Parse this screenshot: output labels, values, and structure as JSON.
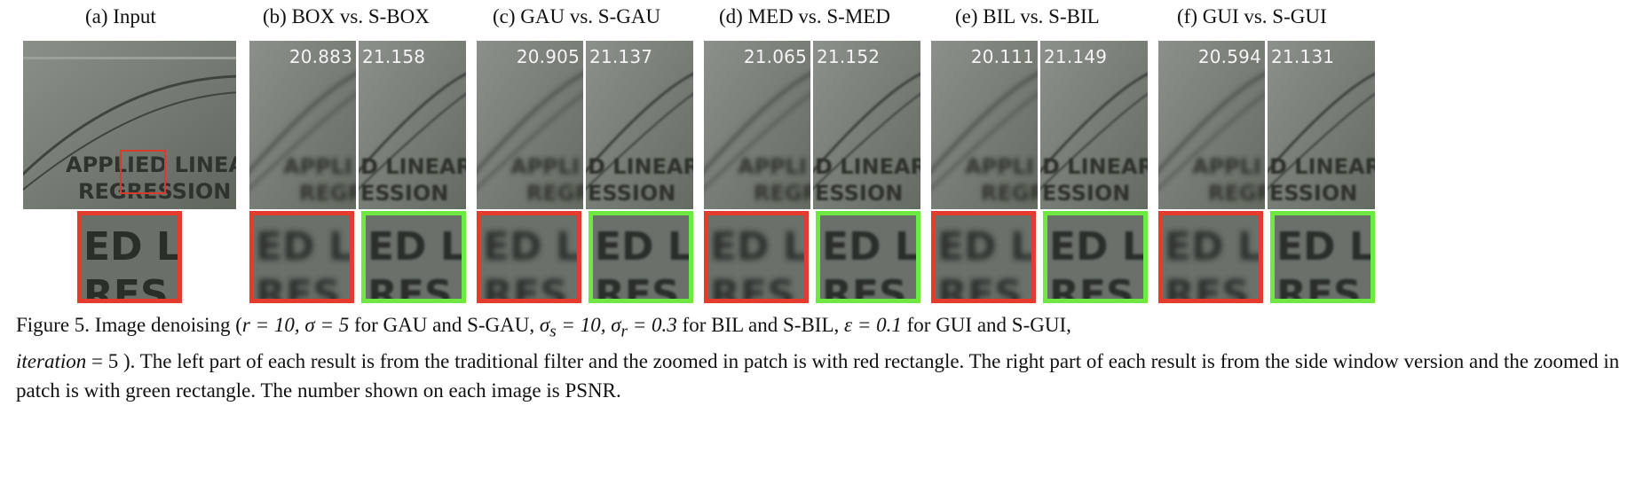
{
  "panels": [
    {
      "title": "(a) Input"
    },
    {
      "title": "(b) BOX vs. S-BOX",
      "left_psnr": "20.883",
      "right_psnr": "21.158"
    },
    {
      "title": "(c) GAU vs. S-GAU",
      "left_psnr": "20.905",
      "right_psnr": "21.137"
    },
    {
      "title": "(d) MED vs. S-MED",
      "left_psnr": "21.065",
      "right_psnr": "21.152"
    },
    {
      "title": "(e) BIL vs. S-BIL",
      "left_psnr": "20.111",
      "right_psnr": "21.149"
    },
    {
      "title": "(f) GUI vs. S-GUI",
      "left_psnr": "20.594",
      "right_psnr": "21.131"
    }
  ],
  "image_text": {
    "line1": "APPLIED LINEAR",
    "line2": "REGRESSION",
    "zoom_text1": "ED L",
    "zoom_text2": "RES"
  },
  "caption": {
    "lead": "Figure 5. Image denoising (",
    "eq1": "r = 10, σ = 5",
    "t1": " for GAU and S-GAU, ",
    "eq2": "σ",
    "eq2sub": "s",
    "eq2b": " = 10, σ",
    "eq2bsub": "r",
    "eq2c": " = 0.3",
    "t2": " for BIL and S-BIL, ",
    "eq3": "ε = 0.1",
    "t3": " for GUI and S-GUI,",
    "eq4": "iteration",
    "eq4b": " = 5 ). The left part of each result is from the traditional filter and the zoomed in patch is with red rectangle. The right part of each result is from the side window version and the zoomed in patch is with green rectangle. The number shown on each image is PSNR."
  },
  "colors": {
    "red_box": "#e53b2c",
    "green_box": "#6fe843"
  }
}
